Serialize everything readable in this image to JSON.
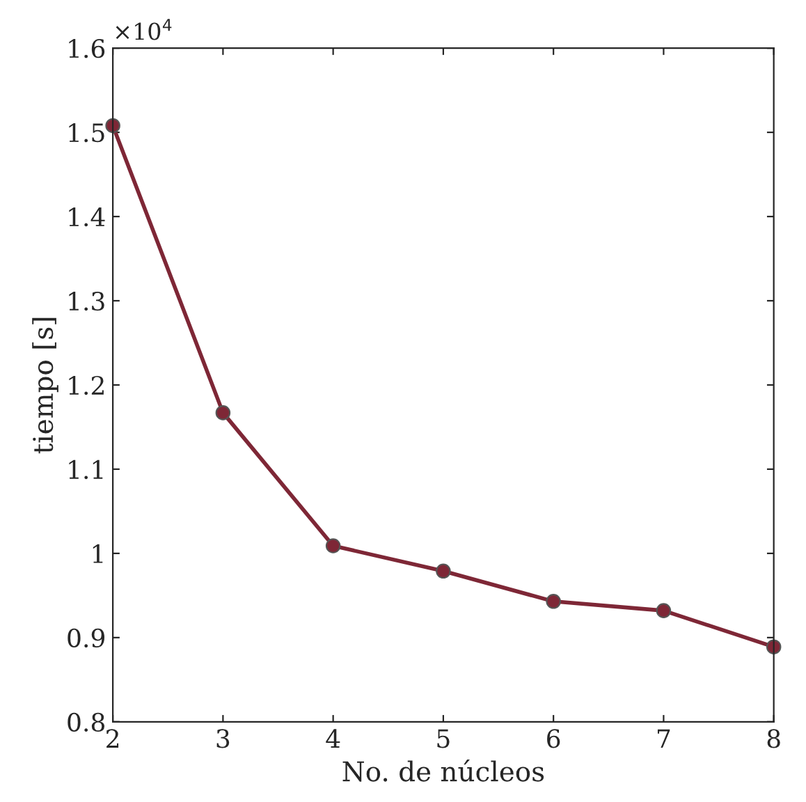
{
  "chart_data": {
    "type": "line",
    "xlabel": "No. de núcleos",
    "ylabel": "tiempo [s]",
    "annotations": [
      "×10$^{4}$"
    ],
    "x": [
      2,
      3,
      4,
      5,
      6,
      7,
      8
    ],
    "series": [
      {
        "color": "#7e2736",
        "values": [
          1.508,
          1.167,
          1.009,
          0.979,
          0.943,
          0.932,
          0.889
        ]
      }
    ],
    "xlim": [
      2,
      8
    ],
    "xticks": [
      2,
      3,
      4,
      5,
      6,
      7,
      8
    ],
    "ylim": [
      0.8,
      1.6
    ],
    "yticks": [
      0.8,
      0.9,
      {
        "value": 1.0,
        "label": "1"
      },
      1.1,
      1.2,
      1.3,
      1.4,
      1.5,
      1.6
    ],
    "marker": "circle",
    "line_style": "solid",
    "grid": false,
    "legend": false
  }
}
